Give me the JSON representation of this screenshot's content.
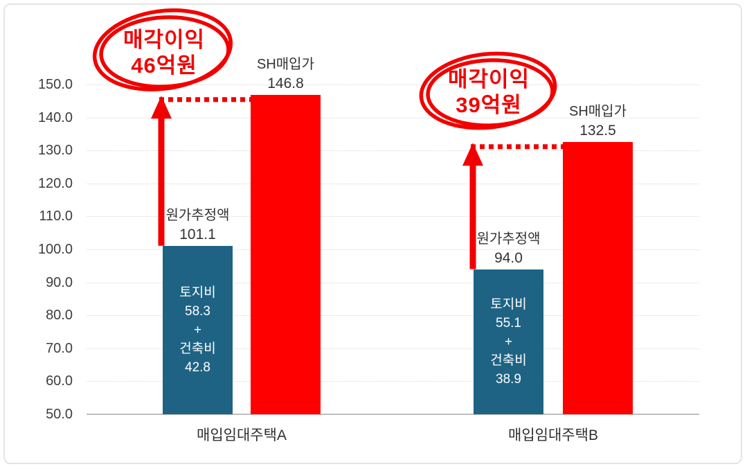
{
  "colors": {
    "cost_bar": "#1e6384",
    "price_bar": "#ff0000",
    "annotation_red": "#f20000",
    "gridline": "#d8d8d8",
    "baseline": "#bdbdbd",
    "axis_text": "#3d3d3d",
    "bar_label_text": "#333333",
    "bar_inner_text": "#ffffff"
  },
  "chart_data": {
    "type": "bar",
    "title": "",
    "categories": [
      "매입임대주택A",
      "매입임대주택B"
    ],
    "series": [
      {
        "name": "원가추정액",
        "values": [
          101.1,
          94.0
        ]
      },
      {
        "name": "SH매입가",
        "values": [
          146.8,
          132.5
        ]
      }
    ],
    "cost_breakdown": [
      {
        "토지비": 58.3,
        "건축비": 42.8
      },
      {
        "토지비": 55.1,
        "건축비": 38.9
      }
    ],
    "profit_annotations": [
      {
        "label": "매각이익",
        "value": "46억원"
      },
      {
        "label": "매각이익",
        "value": "39억원"
      }
    ],
    "ylim": [
      50.0,
      150.0
    ],
    "yticks": [
      150.0,
      140.0,
      130.0,
      120.0,
      110.0,
      100.0,
      90.0,
      80.0,
      70.0,
      60.0,
      50.0
    ],
    "ytick_labels": [
      "150.0",
      "140.0",
      "130.0",
      "120.0",
      "110.0",
      "100.0",
      "90.0",
      "80.0",
      "70.0",
      "60.0",
      "50.0"
    ],
    "grid": true,
    "legend_position": "none"
  },
  "groups": [
    {
      "category": "매입임대주택A",
      "cost_title": "원가추정액",
      "cost_value": "101.1",
      "price_title": "SH매입가",
      "price_value": "146.8",
      "inner_lines": [
        "토지비",
        "58.3",
        "+",
        "건축비",
        "42.8"
      ],
      "profit_line1": "매각이익",
      "profit_line2": "46억원"
    },
    {
      "category": "매입임대주택B",
      "cost_title": "원가추정액",
      "cost_value": "94.0",
      "price_title": "SH매입가",
      "price_value": "132.5",
      "inner_lines": [
        "토지비",
        "55.1",
        "+",
        "건축비",
        "38.9"
      ],
      "profit_line1": "매각이익",
      "profit_line2": "39억원"
    }
  ]
}
